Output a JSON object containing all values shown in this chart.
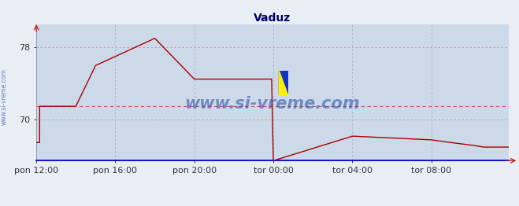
{
  "title": "Vaduz",
  "line_color": "#aa0000",
  "plot_bg_color": "#ccd9e8",
  "fig_bg_color": "#e8eef4",
  "grid_v_color": "#aab0cc",
  "grid_h_color": "#cc9999",
  "avg_line_color": "#cc5555",
  "watermark_text": "www.si-vreme.com",
  "watermark_color": "#3355aa",
  "sidebar_text": "www.si-vreme.com",
  "sidebar_color": "#4466bb",
  "yticks": [
    70,
    78
  ],
  "ymin": 65.5,
  "ymax": 80.5,
  "xtick_labels": [
    "pon 12:00",
    "pon 16:00",
    "pon 20:00",
    "tor 00:00",
    "tor 04:00",
    "tor 08:00"
  ],
  "xtick_positions": [
    0,
    48,
    96,
    144,
    192,
    240
  ],
  "xmin": 0,
  "xmax": 287,
  "legend_color": "#cc0000",
  "time_values": [
    0,
    2,
    2,
    24,
    24,
    36,
    36,
    72,
    72,
    96,
    96,
    143,
    143,
    144,
    144,
    192,
    192,
    193,
    193,
    240,
    240,
    252,
    252,
    265,
    265,
    272,
    272,
    287
  ],
  "temp_values": [
    67.5,
    67.5,
    71.5,
    71.5,
    71.5,
    76.0,
    76.0,
    79.0,
    79.0,
    74.5,
    74.5,
    74.5,
    74.5,
    65.5,
    65.5,
    68.2,
    68.2,
    68.2,
    68.2,
    67.8,
    67.8,
    67.5,
    67.5,
    67.2,
    67.2,
    67.0,
    67.0,
    67.0
  ],
  "avg_line_value": 71.5,
  "title_fontsize": 10,
  "tick_fontsize": 8,
  "legend_fontsize": 8
}
